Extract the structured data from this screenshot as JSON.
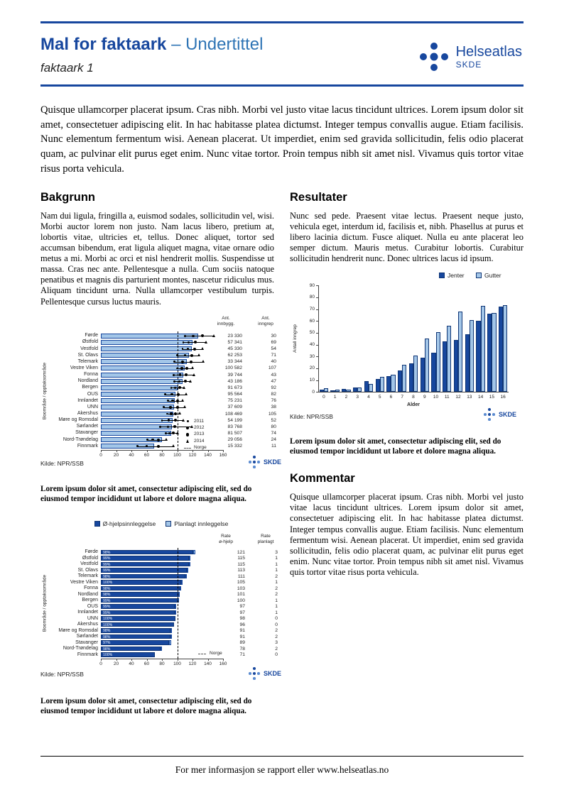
{
  "header": {
    "title": "Mal for faktaark",
    "subtitle": "– Undertittel",
    "sheet_label": "faktaark 1",
    "logo": {
      "name": "Helseatlas",
      "org": "SKDE"
    }
  },
  "colors": {
    "brand": "#17479E",
    "dark_bar": "#17479E",
    "light_bar": "#A3C6E8",
    "dark_border": "#0F3575"
  },
  "intro": "Quisque ullamcorper placerat ipsum. Cras nibh. Morbi vel justo vitae lacus tincidunt ultrices. Lorem ipsum dolor sit amet, consectetuer adipiscing elit. In hac habitasse platea dictumst. Integer tempus convallis augue. Etiam facilisis. Nunc elementum fermentum wisi. Aenean placerat. Ut imperdiet, enim sed gravida sollicitudin, felis odio placerat quam, ac pulvinar elit purus eget enim. Nunc vitae tortor. Proin tempus nibh sit amet nisl. Vivamus quis tortor vitae risus porta vehicula.",
  "sections": {
    "bakgrunn": {
      "heading": "Bakgrunn",
      "body": "Nam dui ligula, fringilla a, euismod sodales, sollicitudin vel, wisi. Morbi auctor lorem non justo. Nam lacus libero, pretium at, lobortis vitae, ultricies et, tellus. Donec aliquet, tortor sed accumsan bibendum, erat ligula aliquet magna, vitae ornare odio metus a mi. Morbi ac orci et nisl hendrerit mollis. Suspendisse ut massa. Cras nec ante. Pellentesque a nulla. Cum sociis natoque penatibus et magnis dis parturient montes, nascetur ridiculus mus. Aliquam tincidunt urna. Nulla ullamcorper vestibulum turpis. Pellentesque cursus luctus mauris."
    },
    "resultater": {
      "heading": "Resultater",
      "body": "Nunc sed pede. Praesent vitae lectus. Praesent neque justo, vehicula eget, interdum id, facilisis et, nibh. Phasellus at purus et libero lacinia dictum. Fusce aliquet. Nulla eu ante placerat leo semper dictum. Mauris metus. Curabitur lobortis. Curabitur sollicitudin hendrerit nunc. Donec ultrices lacus id ipsum."
    },
    "kommentar": {
      "heading": "Kommentar",
      "body": "Quisque ullamcorper placerat ipsum. Cras nibh. Morbi vel justo vitae lacus tincidunt ultrices. Lorem ipsum dolor sit amet, consectetuer adipiscing elit. In hac habitasse platea dictumst. Integer tempus convallis augue. Etiam facilisis. Nunc elementum fermentum wisi. Aenean placerat. Ut imperdiet, enim sed gravida sollicitudin, felis odio placerat quam, ac pulvinar elit purus eget enim. Nunc vitae tortor. Proin tempus nibh sit amet nisl. Vivamus quis tortor vitae risus porta vehicula."
    }
  },
  "captions": {
    "chart1": "Lorem ipsum dolor sit amet, consectetur adipiscing elit, sed do eiusmod tempor incididunt ut labore et dolore magna aliqua.",
    "chart2": "Lorem ipsum dolor sit amet, consectetur adipiscing elit, sed do eiusmod tempor incididunt ut labore et dolore magna aliqua.",
    "chart3": "Lorem ipsum dolor sit amet, consectetur adipiscing elit, sed do eiusmod tempor incididunt ut labore et dolore magna aliqua."
  },
  "footer": {
    "text": "For mer informasjon se rapport eller www.helseatlas.no"
  },
  "chart_data": [
    {
      "id": "chart1",
      "type": "bar",
      "variant": "points",
      "ylabel": "Boområde / opptaksområde",
      "source": "Kilde: NPR/SSB",
      "logo": "SKDE",
      "xlim": [
        0,
        160
      ],
      "xticks": [
        0,
        20,
        40,
        60,
        80,
        100,
        120,
        140,
        160
      ],
      "reference_line": 100,
      "col_headers": [
        [
          "Ant.",
          "innbygg."
        ],
        [
          "Ant.",
          "inngrep"
        ]
      ],
      "legend": [
        "2011",
        "2012",
        "2013",
        "2014",
        "Norge"
      ],
      "rows": [
        {
          "label": "Førde",
          "rate": 127,
          "points": [
            110,
            121,
            133,
            148
          ],
          "innbygg": "23 330",
          "inngrep": "30"
        },
        {
          "label": "Østfold",
          "rate": 120,
          "points": [
            108,
            115,
            124,
            138
          ],
          "innbygg": "57 341",
          "inngrep": "69"
        },
        {
          "label": "Vestfold",
          "rate": 119,
          "points": [
            107,
            114,
            123,
            133
          ],
          "innbygg": "45 330",
          "inngrep": "54"
        },
        {
          "label": "St. Olavs",
          "rate": 115,
          "points": [
            100,
            110,
            119,
            129
          ],
          "innbygg": "62 253",
          "inngrep": "71"
        },
        {
          "label": "Telemark",
          "rate": 113,
          "points": [
            96,
            107,
            118,
            134
          ],
          "innbygg": "33 344",
          "inngrep": "40"
        },
        {
          "label": "Vestre Viken",
          "rate": 110,
          "points": [
            100,
            106,
            113,
            120
          ],
          "innbygg": "100 582",
          "inngrep": "107"
        },
        {
          "label": "Fonna",
          "rate": 108,
          "points": [
            95,
            104,
            112,
            122
          ],
          "innbygg": "39 744",
          "inngrep": "43"
        },
        {
          "label": "Nordland",
          "rate": 107,
          "points": [
            96,
            103,
            111,
            118
          ],
          "innbygg": "43 186",
          "inngrep": "47"
        },
        {
          "label": "Bergen",
          "rate": 100,
          "points": [
            92,
            97,
            103,
            109
          ],
          "innbygg": "91 673",
          "inngrep": "92"
        },
        {
          "label": "OUS",
          "rate": 98,
          "points": [
            84,
            93,
            101,
            112
          ],
          "innbygg": "95 564",
          "inngrep": "82"
        },
        {
          "label": "Innlandet",
          "rate": 97,
          "points": [
            88,
            94,
            100,
            107
          ],
          "innbygg": "75 231",
          "inngrep": "76"
        },
        {
          "label": "UNN",
          "rate": 96,
          "points": [
            82,
            91,
            100,
            110
          ],
          "innbygg": "37 609",
          "inngrep": "38"
        },
        {
          "label": "Akershus",
          "rate": 95,
          "points": [
            87,
            92,
            98,
            104
          ],
          "innbygg": "108 469",
          "inngrep": "105"
        },
        {
          "label": "Møre og Romsdal",
          "rate": 94,
          "points": [
            80,
            89,
            98,
            108
          ],
          "innbygg": "54 199",
          "inngrep": "52"
        },
        {
          "label": "Sørlandet",
          "rate": 93,
          "points": [
            78,
            88,
            97,
            119
          ],
          "innbygg": "83 768",
          "inngrep": "80"
        },
        {
          "label": "Stavanger",
          "rate": 92,
          "points": [
            85,
            90,
            95,
            101
          ],
          "innbygg": "81 507",
          "inngrep": "74"
        },
        {
          "label": "Nord-Trøndelag",
          "rate": 80,
          "points": [
            61,
            68,
            75,
            86
          ],
          "innbygg": "29 056",
          "inngrep": "24"
        },
        {
          "label": "Finnmark",
          "rate": 70,
          "points": [
            48,
            60,
            75,
            95
          ],
          "innbygg": "15 332",
          "inngrep": "11"
        }
      ]
    },
    {
      "id": "chart2",
      "type": "bar",
      "variant": "grouped-vertical",
      "xlabel": "Alder",
      "ylabel": "Antall inngrep",
      "source": "Kilde: NPR/SSB",
      "logo": "SKDE",
      "ylim": [
        0,
        90
      ],
      "yticks": [
        0,
        10,
        20,
        30,
        40,
        50,
        60,
        70,
        80,
        90
      ],
      "categories": [
        "0",
        "1",
        "2",
        "3",
        "4",
        "5",
        "6",
        "7",
        "8",
        "9",
        "10",
        "11",
        "12",
        "13",
        "14",
        "15",
        "16"
      ],
      "series": [
        {
          "name": "Jenter",
          "color": "dark",
          "values": [
            2,
            1.5,
            2.5,
            3.5,
            9,
            11,
            13.5,
            18,
            24,
            29,
            33,
            43,
            44,
            49,
            60,
            66,
            72
          ]
        },
        {
          "name": "Gutter",
          "color": "light",
          "values": [
            3,
            2,
            2,
            4,
            7,
            13,
            14.5,
            23,
            30.5,
            45,
            50.5,
            56,
            68,
            61,
            72.5,
            66.5,
            73.5
          ]
        }
      ]
    },
    {
      "id": "chart3",
      "type": "bar",
      "variant": "stacked",
      "ylabel": "Boområde / opptaksområde",
      "source": "Kilde: NPR/SSB",
      "logo": "SKDE",
      "xlim": [
        0,
        160
      ],
      "xticks": [
        0,
        20,
        40,
        60,
        80,
        100,
        120,
        140,
        160
      ],
      "reference_line": 100,
      "reference_label": "Norge",
      "legend": [
        "Ø-hjelpsinnleggelse",
        "Planlagt innleggelse"
      ],
      "col_headers": [
        [
          "Rate",
          "ø-hjelp"
        ],
        [
          "Rate",
          "planlagt"
        ]
      ],
      "rows": [
        {
          "label": "Førde",
          "pct": "98%",
          "ohjelp": 121,
          "planlagt": 3
        },
        {
          "label": "Østfold",
          "pct": "99%",
          "ohjelp": 115,
          "planlagt": 1
        },
        {
          "label": "Vestfold",
          "pct": "99%",
          "ohjelp": 115,
          "planlagt": 1
        },
        {
          "label": "St. Olavs",
          "pct": "99%",
          "ohjelp": 113,
          "planlagt": 1
        },
        {
          "label": "Telemark",
          "pct": "98%",
          "ohjelp": 111,
          "planlagt": 2
        },
        {
          "label": "Vestre Viken",
          "pct": "100%",
          "ohjelp": 105,
          "planlagt": 1
        },
        {
          "label": "Fonna",
          "pct": "98%",
          "ohjelp": 103,
          "planlagt": 2
        },
        {
          "label": "Nordland",
          "pct": "98%",
          "ohjelp": 101,
          "planlagt": 2
        },
        {
          "label": "Bergen",
          "pct": "99%",
          "ohjelp": 100,
          "planlagt": 1
        },
        {
          "label": "OUS",
          "pct": "99%",
          "ohjelp": 97,
          "planlagt": 1
        },
        {
          "label": "Innlandet",
          "pct": "99%",
          "ohjelp": 97,
          "planlagt": 1
        },
        {
          "label": "UNN",
          "pct": "100%",
          "ohjelp": 98,
          "planlagt": 0
        },
        {
          "label": "Akershus",
          "pct": "100%",
          "ohjelp": 96,
          "planlagt": 0
        },
        {
          "label": "Møre og Romsdal",
          "pct": "98%",
          "ohjelp": 91,
          "planlagt": 2
        },
        {
          "label": "Sørlandet",
          "pct": "98%",
          "ohjelp": 91,
          "planlagt": 2
        },
        {
          "label": "Stavanger",
          "pct": "97%",
          "ohjelp": 89,
          "planlagt": 3
        },
        {
          "label": "Nord-Trøndelag",
          "pct": "98%",
          "ohjelp": 78,
          "planlagt": 2
        },
        {
          "label": "Finnmark",
          "pct": "100%",
          "ohjelp": 71,
          "planlagt": 0
        }
      ]
    }
  ]
}
